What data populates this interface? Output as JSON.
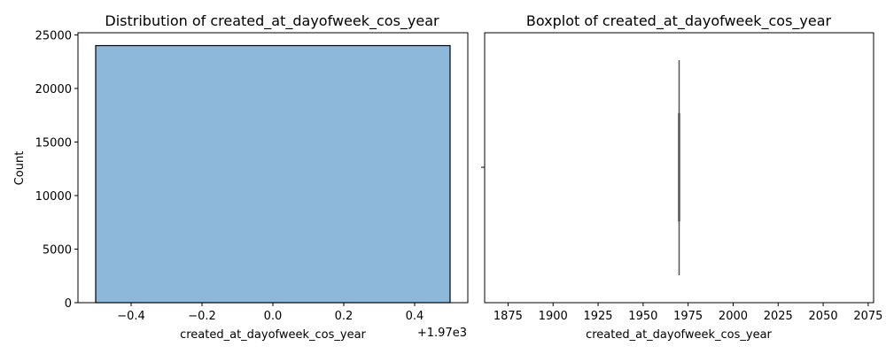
{
  "chart_data": [
    {
      "type": "bar",
      "title": "Distribution of created_at_dayofweek_cos_year",
      "xlabel": "created_at_dayofweek_cos_year",
      "ylabel": "Count",
      "x_offset_text": "+1.97e3",
      "xlim": [
        -0.55,
        0.55
      ],
      "ylim": [
        0,
        25200
      ],
      "x_ticks": [
        -0.4,
        -0.2,
        0.0,
        0.2,
        0.4
      ],
      "x_tick_labels": [
        "−0.4",
        "−0.2",
        "0.0",
        "0.2",
        "0.4"
      ],
      "y_ticks": [
        0,
        5000,
        10000,
        15000,
        20000,
        25000
      ],
      "y_tick_labels": [
        "0",
        "5000",
        "10000",
        "15000",
        "20000",
        "25000"
      ],
      "bars": [
        {
          "x_start": -0.5,
          "x_end": 0.5,
          "count": 24000
        }
      ],
      "bar_color": "#8db8da",
      "edge_color": "#000000",
      "grid": false
    },
    {
      "type": "boxplot",
      "title": "Boxplot of created_at_dayofweek_cos_year",
      "xlabel": "created_at_dayofweek_cos_year",
      "xlim": [
        1862,
        2078
      ],
      "x_ticks": [
        1875,
        1900,
        1925,
        1950,
        1975,
        2000,
        2025,
        2050,
        2075
      ],
      "x_tick_labels": [
        "1875",
        "1900",
        "1925",
        "1950",
        "1975",
        "2000",
        "2025",
        "2050",
        "2075"
      ],
      "value": 1970,
      "line_color": "#555555",
      "grid": false
    }
  ]
}
